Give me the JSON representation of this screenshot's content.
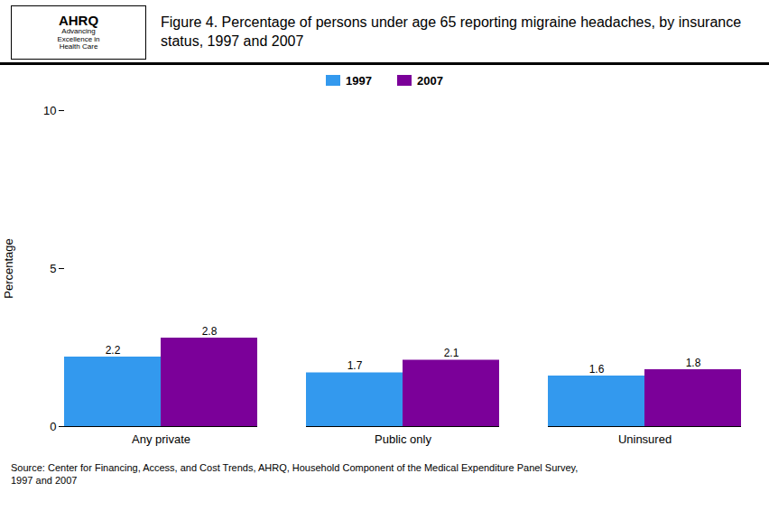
{
  "chart_data": {
    "type": "bar",
    "title": "Figure 4. Percentage of persons under age 65 reporting migraine headaches, by insurance status, 1997 and 2007",
    "annotations": [
      "AHRQ",
      "Advancing\nExcellence in\nHealth Care"
    ],
    "caption": "Source: Center  for Financing, Access, and Cost Trends,  AHRQ,  Household Component of the Medical Expenditure Panel Survey,\n1997  and 2007",
    "categories": [
      "Any private",
      "Public only",
      "Uninsured"
    ],
    "series": [
      {
        "name": "1997",
        "color": "#3399EE",
        "values": [
          2.2,
          1.7,
          1.6
        ]
      },
      {
        "name": "2007",
        "color": "#7B0099",
        "values": [
          2.8,
          2.1,
          1.8
        ]
      }
    ],
    "ylabel": "Percentage",
    "ylim": [
      0,
      10
    ],
    "yticks": [
      0,
      5,
      10
    ],
    "grid": false,
    "legend": "top",
    "data_labels": true
  }
}
